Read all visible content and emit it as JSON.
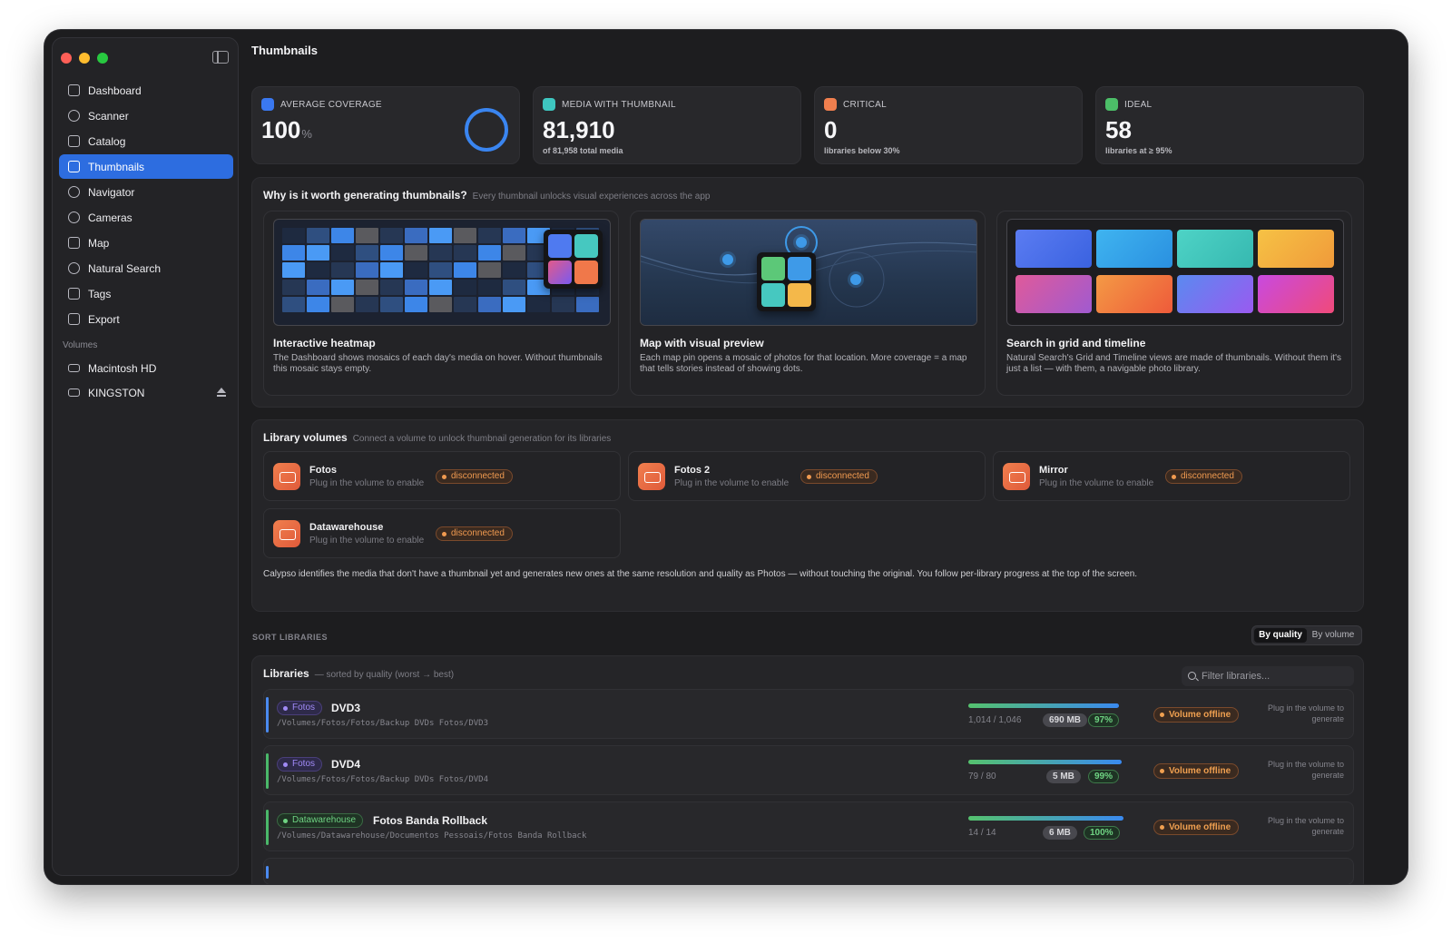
{
  "window": {
    "title": "Thumbnails"
  },
  "sidebar": {
    "nav": [
      {
        "label": "Dashboard",
        "icon": "grid-icon"
      },
      {
        "label": "Scanner",
        "icon": "broadcast-icon"
      },
      {
        "label": "Catalog",
        "icon": "books-icon"
      },
      {
        "label": "Thumbnails",
        "icon": "photo-stack-icon",
        "active": true
      },
      {
        "label": "Navigator",
        "icon": "compass-icon"
      },
      {
        "label": "Cameras",
        "icon": "aperture-icon"
      },
      {
        "label": "Map",
        "icon": "map-icon"
      },
      {
        "label": "Natural Search",
        "icon": "magnifier-sparkle-icon"
      },
      {
        "label": "Tags",
        "icon": "tag-icon"
      },
      {
        "label": "Export",
        "icon": "share-icon"
      }
    ],
    "volumes_label": "Volumes",
    "volumes": [
      {
        "label": "Macintosh HD",
        "icon": "drive-icon"
      },
      {
        "label": "KINGSTON",
        "icon": "drive-icon",
        "ejectable": true
      }
    ]
  },
  "kpis": [
    {
      "label": "AVERAGE COVERAGE",
      "value": "100",
      "unit": "%",
      "sub": "",
      "color": "#3a78f0",
      "icon": "half-circle-icon"
    },
    {
      "label": "MEDIA WITH THUMBNAIL",
      "value": "81,910",
      "unit": "",
      "sub": "of 81,958 total media",
      "color": "#3ec6c0",
      "icon": "photo-icon"
    },
    {
      "label": "CRITICAL",
      "value": "0",
      "unit": "",
      "sub": "libraries below 30%",
      "color": "#f07f4e",
      "icon": "exclamation-icon"
    },
    {
      "label": "IDEAL",
      "value": "58",
      "unit": "",
      "sub": "libraries at ≥ 95%",
      "color": "#4cbe68",
      "icon": "checkmark-icon"
    }
  ],
  "why": {
    "title": "Why is it worth generating thumbnails?",
    "subtitle": "Every thumbnail unlocks visual experiences across the app",
    "features": [
      {
        "title": "Interactive heatmap",
        "desc": "The Dashboard shows mosaics of each day's media on hover. Without thumbnails this mosaic stays empty."
      },
      {
        "title": "Map with visual preview",
        "desc": "Each map pin opens a mosaic of photos for that location. More coverage = a map that tells stories instead of showing dots."
      },
      {
        "title": "Search in grid and timeline",
        "desc": "Natural Search's Grid and Timeline views are made of thumbnails. Without them it's just a list — with them, a navigable photo library."
      }
    ]
  },
  "volumes_panel": {
    "title": "Library volumes",
    "subtitle": "Connect a volume to unlock thumbnail generation for its libraries",
    "items": [
      {
        "name": "Fotos",
        "sub": "Plug in the volume to enable",
        "status": "disconnected"
      },
      {
        "name": "Fotos 2",
        "sub": "Plug in the volume to enable",
        "status": "disconnected"
      },
      {
        "name": "Mirror",
        "sub": "Plug in the volume to enable",
        "status": "disconnected"
      },
      {
        "name": "Datawarehouse",
        "sub": "Plug in the volume to enable",
        "status": "disconnected"
      }
    ],
    "note": "Calypso identifies the media that don't have a thumbnail yet and generates new ones at the same resolution and quality as Photos — without touching the original. You follow per-library progress at the top of the screen."
  },
  "sort": {
    "label": "SORT LIBRARIES",
    "options": [
      "By quality",
      "By volume"
    ],
    "selected": "By quality"
  },
  "libraries": {
    "title": "Libraries",
    "subtitle": "— sorted by quality (worst → best)",
    "filter_placeholder": "Filter libraries...",
    "rows": [
      {
        "volume": "Fotos",
        "name": "DVD3",
        "path": "/Volumes/Fotos/Fotos/Backup DVDs Fotos/DVD3",
        "count": "1,014 / 1,046",
        "size": "690 MB",
        "pct": "97%",
        "progress": 0.97,
        "status": "Volume offline",
        "note": "Plug in the volume to generate"
      },
      {
        "volume": "Fotos",
        "name": "DVD4",
        "path": "/Volumes/Fotos/Fotos/Backup DVDs Fotos/DVD4",
        "count": "79 / 80",
        "size": "5 MB",
        "pct": "99%",
        "progress": 0.99,
        "status": "Volume offline",
        "note": "Plug in the volume to generate"
      },
      {
        "volume": "Datawarehouse",
        "name": "Fotos Banda Rollback",
        "path": "/Volumes/Datawarehouse/Documentos Pessoais/Fotos Banda Rollback",
        "count": "14 / 14",
        "size": "6 MB",
        "pct": "100%",
        "progress": 1.0,
        "status": "Volume offline",
        "note": "Plug in the volume to generate"
      }
    ]
  }
}
